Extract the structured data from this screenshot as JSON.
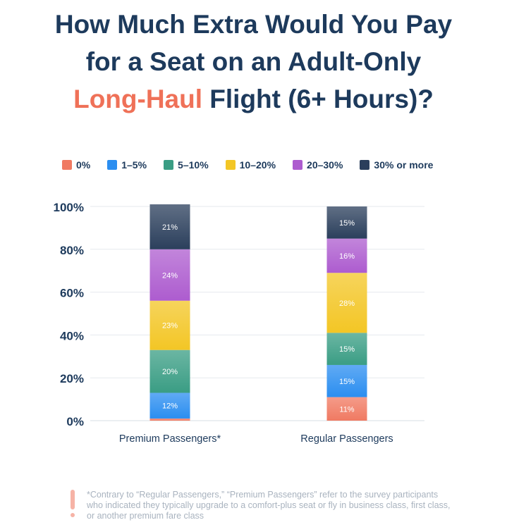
{
  "title": {
    "line1": "How Much Extra Would You Pay",
    "line2": "for a Seat on an Adult-Only",
    "line3_accent": "Long-Haul",
    "line3_rest": " Flight (6+ Hours)?"
  },
  "colors": {
    "title": "#1d3a5c",
    "accent": "#ef7158",
    "grid": "#e6e9ee"
  },
  "chart_data": {
    "type": "bar",
    "stacked": true,
    "categories": [
      "Premium Passengers*",
      "Regular Passengers"
    ],
    "series": [
      {
        "name": "0%",
        "color": "#f07a62",
        "values": [
          1,
          11
        ],
        "labels": [
          "",
          "11%"
        ]
      },
      {
        "name": "1–5%",
        "color": "#2b8ef0",
        "values": [
          12,
          15
        ],
        "labels": [
          "12%",
          "15%"
        ]
      },
      {
        "name": "5–10%",
        "color": "#3a9d84",
        "values": [
          20,
          15
        ],
        "labels": [
          "20%",
          "15%"
        ]
      },
      {
        "name": "10–20%",
        "color": "#f3c625",
        "values": [
          23,
          28
        ],
        "labels": [
          "23%",
          "28%"
        ]
      },
      {
        "name": "20–30%",
        "color": "#ad5ccf",
        "values": [
          24,
          16
        ],
        "labels": [
          "24%",
          "16%"
        ]
      },
      {
        "name": "30% or more",
        "color": "#2b3f5c",
        "values": [
          21,
          15
        ],
        "labels": [
          "21%",
          "15%"
        ]
      }
    ],
    "yticks": [
      "0%",
      "20%",
      "40%",
      "60%",
      "80%",
      "100%"
    ],
    "ylim": [
      0,
      100
    ],
    "grid": true,
    "legend_position": "top"
  },
  "footnote": {
    "text": "*Contrary to “Regular Passengers,” “Premium Passengers” refer to the survey participants who indicated they typically upgrade to a comfort-plus seat or fly in business class, first class, or another premium fare class"
  }
}
